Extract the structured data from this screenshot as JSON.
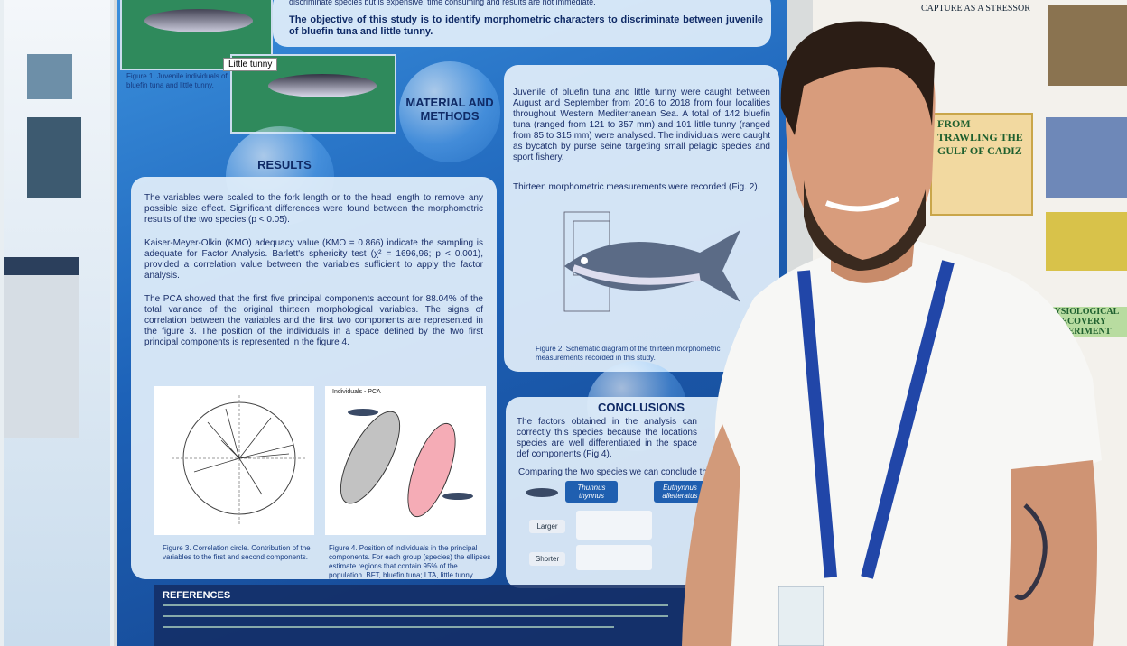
{
  "poster": {
    "intro": "discriminate species but is expensive, time consuming and results are not immediate.",
    "objective": "The objective of this study is to identify morphometric characters to discriminate between juvenile of bluefin tuna and little tunny.",
    "figure1_label": "Little tunny",
    "figure1_caption": "Figure 1. Juvenile individuals of bluefin tuna and little tunny.",
    "methods_title": "MATERIAL AND METHODS",
    "methods_text": "Juvenile of bluefin tuna and little tunny were caught between August and September from 2016 to 2018 from four localities throughout Western Mediterranean Sea. A total of 142 bluefin tuna (ranged from 121 to 357 mm) and 101 little tunny (ranged from 85 to 315 mm) were analysed. The individuals were caught as bycatch by purse seine targeting small pelagic species and sport fishery.",
    "methods_text2": "Thirteen morphometric measurements were recorded (Fig. 2).",
    "figure2_caption": "Figure 2. Schematic diagram of the thirteen morphometric measurements recorded in this study.",
    "results_title": "RESULTS",
    "results_paragraphs": [
      "The variables were scaled to the fork length or to the head length to remove any possible size effect. Significant differences were found between the morphometric results of the two species (p < 0.05).",
      "Kaiser-Meyer-Olkin (KMO) adequacy value (KMO = 0.866) indicate the sampling is adequate for Factor Analysis. Barlett's sphericity test (χ² = 1696,96; p < 0.001), provided a correlation value between the variables sufficient to apply the factor analysis.",
      "The PCA showed that the first five principal components account for 88.04% of the total variance of the original thirteen morphological variables. The signs of correlation between the variables and the first two components are represented in the figure 3. The position of the individuals in a space defined by the two first principal components is represented in the figure 4."
    ],
    "figure4_title": "Individuals - PCA",
    "figure3_caption": "Figure 3. Correlation circle. Contribution of the variables to the first and second components.",
    "figure4_caption": "Figure 4. Position of individuals in the principal components. For each group (species) the ellipses estimate regions that contain 95% of the population. BFT, bluefin tuna; LTA, little tunny.",
    "conclusions_title": "CONCLUSIONS",
    "conclusions_text": "The factors obtained in the analysis can correctly this species because the locations species are well differentiated in the space def components (Fig 4).",
    "conclusions_text2": "Comparing the two species we can conclude that",
    "species": [
      "Thunnus thynnus",
      "Euthynnus alletteratus"
    ],
    "rows": [
      "Larger",
      "Shorter"
    ],
    "references_title": "REFERENCES"
  },
  "right_poster": {
    "title": "CAPTURE AS A STRESSOR",
    "trawling": "FROM TRAWLING THE GULF OF CADIZ",
    "experiment": "PHYSIOLOGICAL RECOVERY EXPERIMENT"
  }
}
